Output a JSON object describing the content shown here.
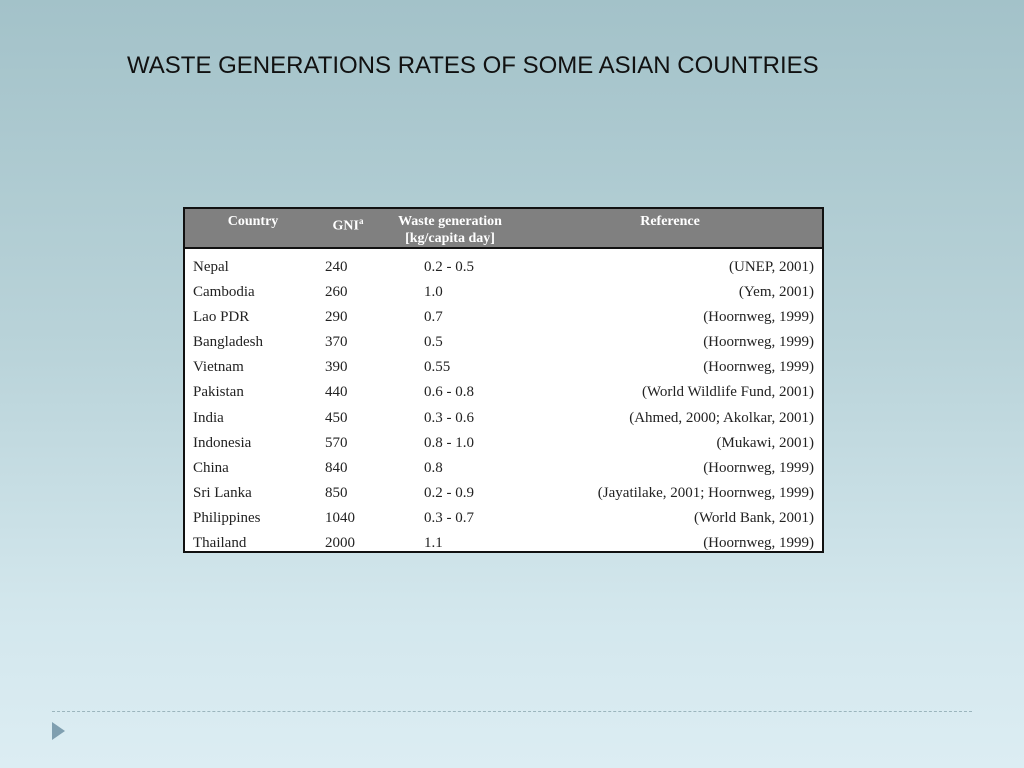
{
  "slide": {
    "title": "WASTE GENERATIONS RATES OF SOME ASIAN COUNTRIES"
  },
  "table": {
    "headers": {
      "country": "Country",
      "gni": "GNI",
      "gni_superscript": "a",
      "waste_line1": "Waste generation",
      "waste_line2": "[kg/capita day]",
      "reference": "Reference"
    },
    "rows": [
      {
        "country": "Nepal",
        "gni": "240",
        "waste": "0.2 - 0.5",
        "reference": "(UNEP, 2001)"
      },
      {
        "country": "Cambodia",
        "gni": "260",
        "waste": "1.0",
        "reference": "(Yem, 2001)"
      },
      {
        "country": "Lao PDR",
        "gni": "290",
        "waste": "0.7",
        "reference": "(Hoornweg, 1999)"
      },
      {
        "country": "Bangladesh",
        "gni": "370",
        "waste": "0.5",
        "reference": "(Hoornweg, 1999)"
      },
      {
        "country": "Vietnam",
        "gni": "390",
        "waste": "0.55",
        "reference": "(Hoornweg, 1999)"
      },
      {
        "country": "Pakistan",
        "gni": "440",
        "waste": "0.6 - 0.8",
        "reference": "(World Wildlife Fund, 2001)"
      },
      {
        "country": "India",
        "gni": "450",
        "waste": "0.3 - 0.6",
        "reference": "(Ahmed, 2000; Akolkar, 2001)"
      },
      {
        "country": "Indonesia",
        "gni": "570",
        "waste": "0.8 - 1.0",
        "reference": "(Mukawi, 2001)"
      },
      {
        "country": "China",
        "gni": "840",
        "waste": "0.8",
        "reference": "(Hoornweg, 1999)"
      },
      {
        "country": "Sri Lanka",
        "gni": "850",
        "waste": "0.2 - 0.9",
        "reference": "(Jayatilake, 2001; Hoornweg, 1999)"
      },
      {
        "country": "Philippines",
        "gni": "1040",
        "waste": "0.3 - 0.7",
        "reference": "(World Bank, 2001)"
      },
      {
        "country": "Thailand",
        "gni": "2000",
        "waste": "1.1",
        "reference": "(Hoornweg, 1999)"
      }
    ]
  },
  "footer": {
    "icon": "triangle-bullet-icon"
  }
}
